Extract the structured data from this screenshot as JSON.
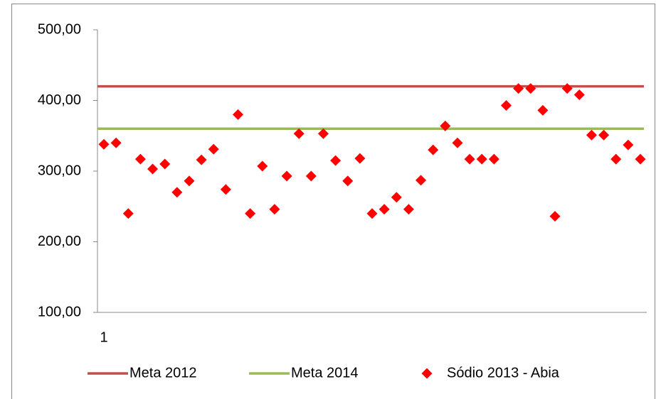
{
  "chart_data": {
    "type": "scatter",
    "categories": [
      "1"
    ],
    "ylim": [
      100,
      500
    ],
    "yticks": [
      {
        "value": 100,
        "label": "100,00"
      },
      {
        "value": 200,
        "label": "200,00"
      },
      {
        "value": 300,
        "label": "300,00"
      },
      {
        "value": 400,
        "label": "400,00"
      },
      {
        "value": 500,
        "label": "500,00"
      }
    ],
    "series": [
      {
        "name": "Meta 2012",
        "color": "#c0504d",
        "type": "line",
        "values": [
          420
        ]
      },
      {
        "name": "Meta 2014",
        "color": "#9bbb59",
        "type": "line",
        "values": [
          360
        ]
      },
      {
        "name": "Sódio 2013 - Abia",
        "color": "#ff0000",
        "type": "scatter",
        "values": [
          338,
          340,
          240,
          317,
          303,
          310,
          270,
          286,
          316,
          331,
          274,
          380,
          240,
          307,
          246,
          293,
          353,
          293,
          353,
          315,
          286,
          318,
          240,
          246,
          263,
          246,
          287,
          330,
          364,
          340,
          317,
          317,
          317,
          393,
          417,
          417,
          386,
          236,
          417,
          408,
          351,
          351,
          317,
          337,
          317
        ]
      }
    ],
    "legend": "bottom"
  }
}
